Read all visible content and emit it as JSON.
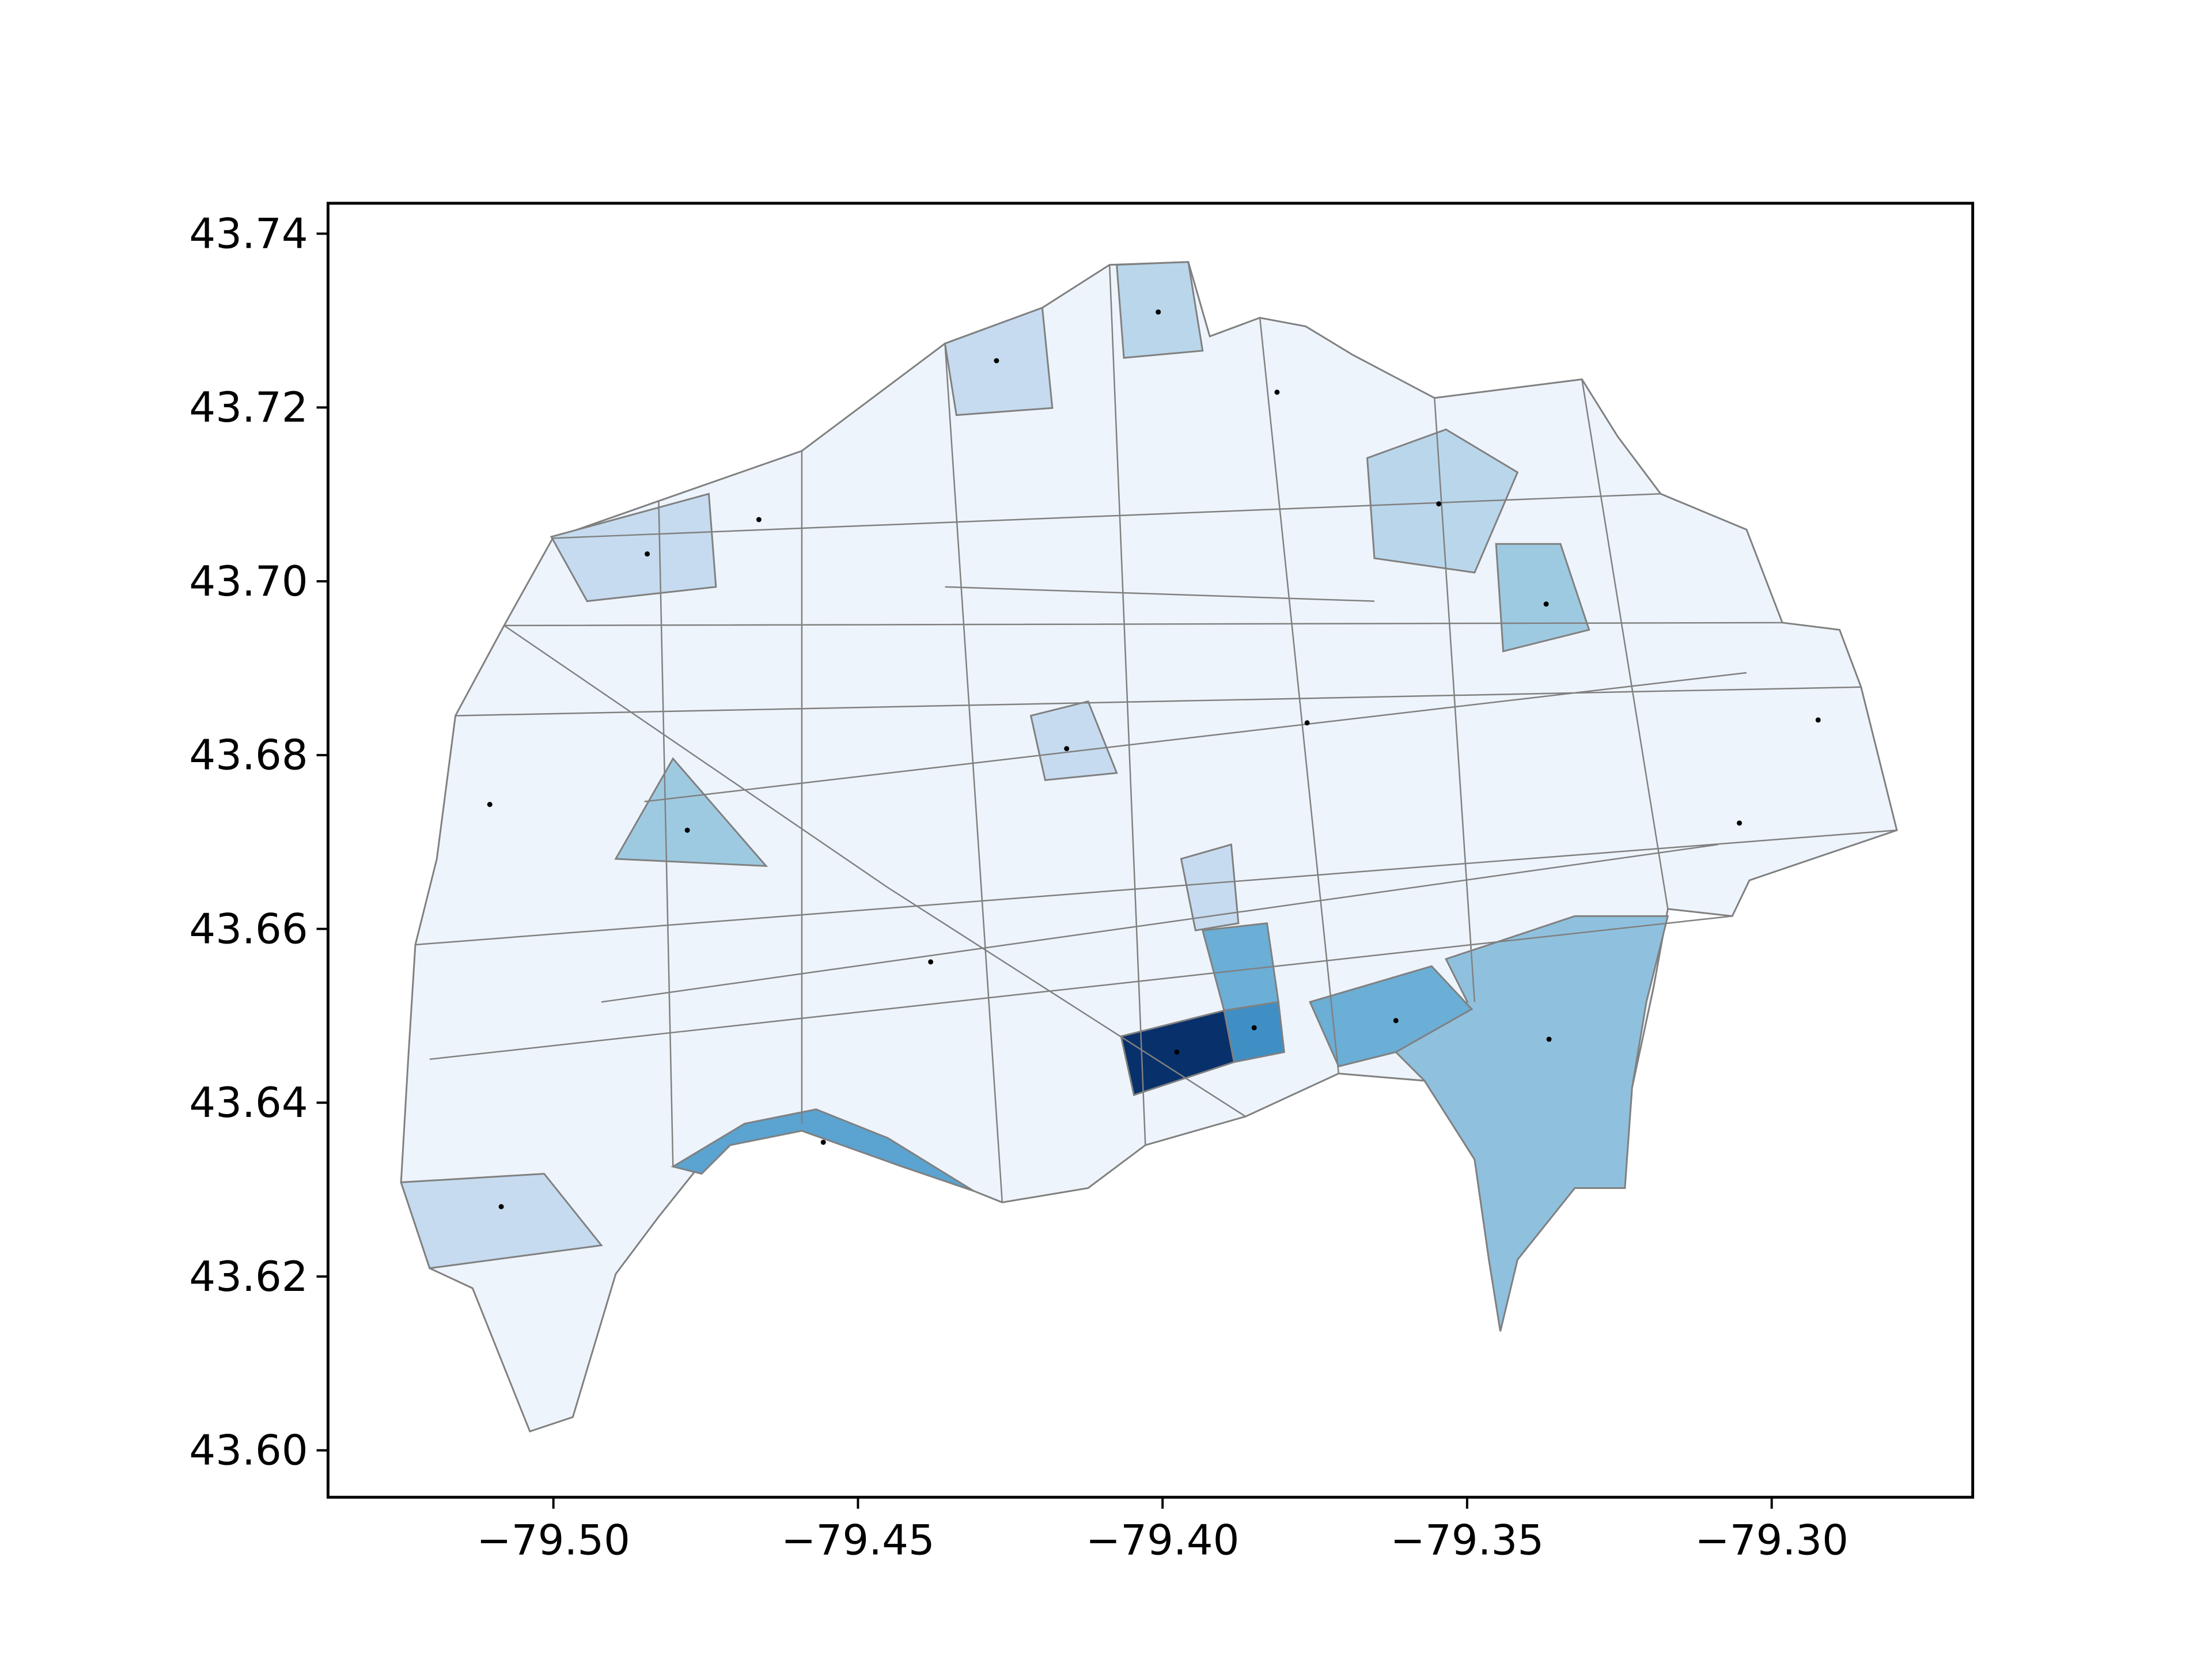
{
  "chart_data": {
    "type": "map",
    "xlim": [
      -79.537,
      -79.267
    ],
    "ylim": [
      43.5946,
      43.7435
    ],
    "xticks": [
      {
        "value": -79.5,
        "label": "−79.50"
      },
      {
        "value": -79.45,
        "label": "−79.45"
      },
      {
        "value": -79.4,
        "label": "−79.40"
      },
      {
        "value": -79.35,
        "label": "−79.35"
      },
      {
        "value": -79.3,
        "label": "−79.30"
      }
    ],
    "yticks": [
      {
        "value": 43.6,
        "label": "43.60"
      },
      43.62,
      43.64,
      43.66,
      43.68,
      {
        "value": 43.7,
        "label": "43.70"
      },
      43.72,
      43.74
    ]
  }
}
